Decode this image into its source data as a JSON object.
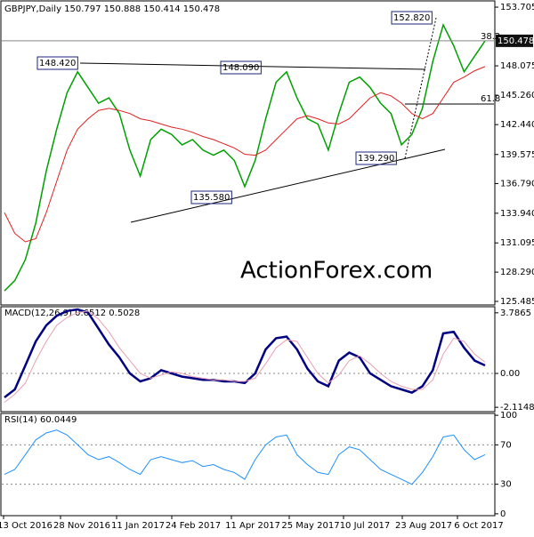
{
  "chart_data": [
    {
      "type": "line",
      "title": "GBPJPY,Daily 150.797 150.888 150.414 150.478",
      "watermark": "ActionForex.com",
      "ylim": [
        125.23,
        154.22
      ],
      "yticks": [
        153.705,
        148.075,
        {
          "value": 145.26,
          "label": "145.260"
        },
        {
          "value": 142.44,
          "label": "142.440"
        },
        139.575,
        {
          "value": 136.79,
          "label": "136.790"
        },
        {
          "value": 133.94,
          "label": "133.940"
        },
        131.095,
        {
          "value": 128.29,
          "label": "128.290"
        },
        125.485
      ],
      "last_price": 150.478,
      "annotations": [
        "152.820",
        "148.420",
        "148.090",
        "135.580",
        "139.290",
        "38.2",
        "61.8"
      ],
      "series": [
        {
          "color": "#00a000",
          "values": [
            126.5,
            127.5,
            129.5,
            133,
            138,
            142,
            145.5,
            147.5,
            146,
            144.5,
            145,
            143.5,
            140,
            137.5,
            141,
            142,
            141.5,
            140.5,
            141,
            140,
            139.5,
            140,
            139,
            136.5,
            139,
            143,
            146.5,
            147.5,
            145,
            143,
            142.5,
            140,
            143.5,
            146.5,
            147,
            146,
            144.5,
            143.5,
            140.5,
            141.5,
            144,
            148.5,
            152,
            150,
            147.5,
            149,
            150.478
          ]
        },
        {
          "color": "#e02020",
          "values": [
            134,
            132,
            131.2,
            131.5,
            134,
            137,
            140,
            142,
            143,
            143.8,
            144,
            143.8,
            143.5,
            143,
            142.8,
            142.5,
            142.2,
            142,
            141.7,
            141.3,
            141,
            140.6,
            140.2,
            139.6,
            139.5,
            140,
            141,
            142,
            143,
            143.3,
            143,
            142.6,
            142.5,
            143,
            144,
            145,
            145.5,
            145.2,
            144.5,
            143.5,
            143,
            143.5,
            145,
            146.5,
            147,
            147.6,
            148
          ]
        }
      ]
    },
    {
      "type": "line",
      "title": "MACD(12,26,9) 0.6512 0.5028",
      "ylim": [
        -2.33,
        4.11
      ],
      "yticks": [
        3.7865,
        {
          "value": 0,
          "label": "0.00"
        },
        -2.1148
      ],
      "series": [
        {
          "color": "#000080",
          "values": [
            -1.5,
            -1,
            0.5,
            2,
            3,
            3.6,
            3.9,
            4,
            3.8,
            2.8,
            1.8,
            1,
            0,
            -0.5,
            -0.3,
            0.2,
            0,
            -0.2,
            -0.3,
            -0.4,
            -0.4,
            -0.5,
            -0.5,
            -0.6,
            0,
            1.5,
            2.2,
            2.3,
            1.5,
            0.3,
            -0.5,
            -0.8,
            0.8,
            1.3,
            1,
            0,
            -0.4,
            -0.8,
            -1,
            -1.2,
            -0.8,
            0.2,
            2.5,
            2.6,
            1.6,
            0.8,
            0.5
          ]
        },
        {
          "color": "#e8a0b0",
          "values": [
            -1.8,
            -1.3,
            -0.6,
            0.8,
            2,
            3,
            3.5,
            3.8,
            3.9,
            3.4,
            2.6,
            1.6,
            0.8,
            0,
            -0.3,
            -0.1,
            0.1,
            0,
            -0.2,
            -0.3,
            -0.4,
            -0.4,
            -0.5,
            -0.5,
            -0.3,
            0.6,
            1.6,
            2.1,
            2,
            1,
            0,
            -0.6,
            -0.1,
            0.8,
            1.1,
            0.6,
            0,
            -0.5,
            -0.8,
            -1,
            -1,
            -0.4,
            1.2,
            2.2,
            2,
            1.2,
            0.7
          ]
        }
      ]
    },
    {
      "type": "line",
      "title": "RSI(14) 60.0449",
      "ylim": [
        -1,
        101
      ],
      "yticks": [
        100,
        70,
        30,
        0
      ],
      "levels": [
        70,
        30
      ],
      "date_labels": [
        "13 Oct 2016",
        "28 Nov 2016",
        "11 Jan 2017",
        "24 Feb 2017",
        "11 Apr 2017",
        "25 May 2017",
        "10 Jul 2017",
        "23 Aug 2017",
        "6 Oct 2017"
      ],
      "series": [
        {
          "color": "#1e90ff",
          "values": [
            40,
            45,
            60,
            75,
            82,
            85,
            80,
            70,
            60,
            55,
            58,
            52,
            45,
            40,
            55,
            58,
            55,
            52,
            54,
            48,
            50,
            45,
            42,
            35,
            55,
            70,
            78,
            80,
            60,
            50,
            42,
            40,
            60,
            68,
            65,
            55,
            45,
            40,
            35,
            30,
            42,
            58,
            78,
            80,
            65,
            55,
            60
          ]
        }
      ]
    }
  ]
}
